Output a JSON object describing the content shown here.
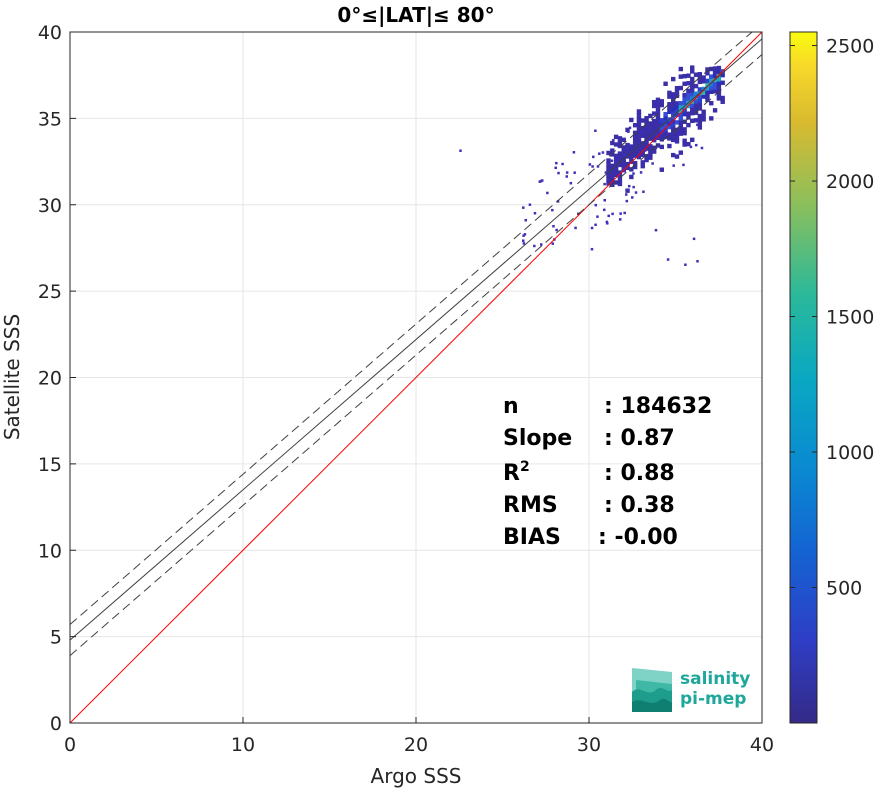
{
  "chart_data": {
    "type": "heatmap",
    "title": "0°≤|LAT|≤ 80°",
    "xlabel": "Argo SSS",
    "ylabel": "Satellite SSS",
    "xlim": [
      0,
      40
    ],
    "ylim": [
      0,
      40
    ],
    "xticks": [
      "0",
      "10",
      "20",
      "30",
      "40"
    ],
    "yticks": [
      "0",
      "5",
      "10",
      "15",
      "20",
      "25",
      "30",
      "35",
      "40"
    ],
    "grid": true,
    "colorbar": {
      "range": [
        0,
        2550
      ],
      "ticks": [
        "500",
        "1000",
        "1500",
        "2000",
        "2500"
      ],
      "colormap": "parula"
    },
    "lines": [
      {
        "name": "1:1",
        "intercept": 0,
        "slope": 1,
        "color": "#ff0000",
        "style": "solid"
      },
      {
        "name": "fit",
        "intercept": 4.8,
        "slope": 0.87,
        "color": "#404040",
        "style": "solid"
      },
      {
        "name": "fit+",
        "intercept": 5.7,
        "slope": 0.87,
        "color": "#404040",
        "style": "dashed"
      },
      {
        "name": "fit-",
        "intercept": 3.9,
        "slope": 0.87,
        "color": "#404040",
        "style": "dashed"
      }
    ],
    "stats": [
      {
        "label": "n",
        "value": ": 184632"
      },
      {
        "label": "Slope",
        "value": ": 0.87"
      },
      {
        "label": "R",
        "sup": "2",
        "value": ": 0.88"
      },
      {
        "label": "RMS",
        "value": ": 0.38"
      },
      {
        "label": "BIAS",
        "value": ": -0.00"
      }
    ]
  },
  "logo": {
    "line1": "salinity",
    "line2": "pi-mep"
  }
}
